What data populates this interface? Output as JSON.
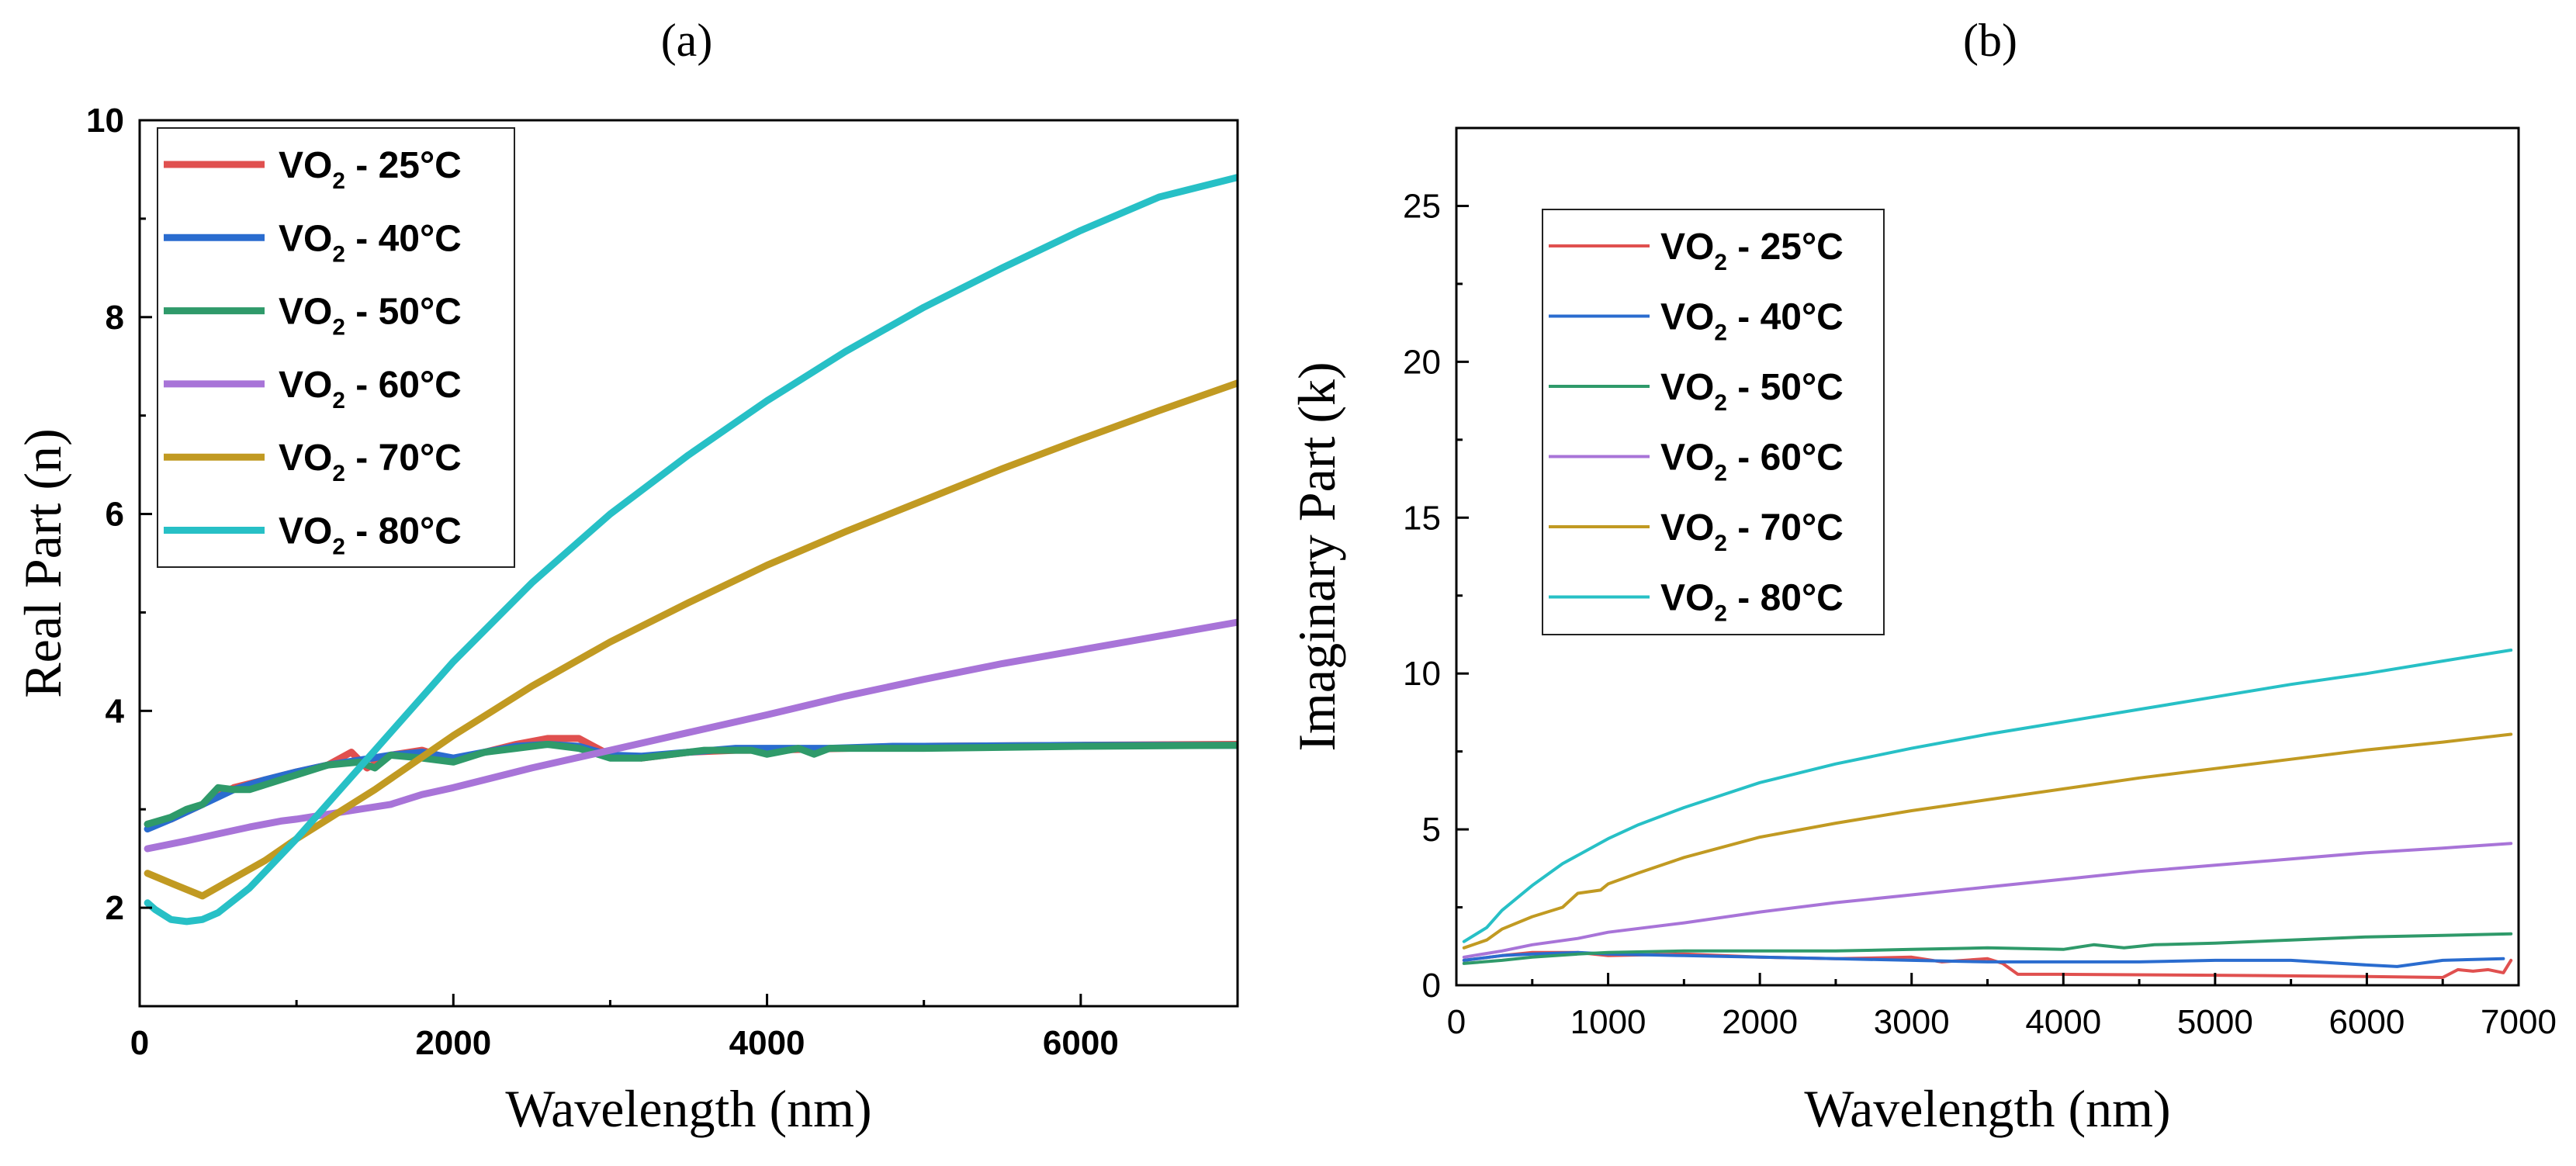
{
  "chart_data": [
    {
      "id": "a",
      "type": "line",
      "panel_label": "(a)",
      "xlabel": "Wavelength (nm)",
      "ylabel": "Real Part (n)",
      "xlim": [
        0,
        7000
      ],
      "ylim": [
        1,
        10
      ],
      "xticks": [
        0,
        2000,
        4000,
        6000
      ],
      "xtick_labels": [
        "0",
        "2000",
        "4000",
        "6000"
      ],
      "yticks": [
        2,
        4,
        6,
        8,
        10
      ],
      "ytick_labels": [
        "2",
        "4",
        "6",
        "8",
        "10"
      ],
      "legend_position": "top-left",
      "legend_style": "thick",
      "series": [
        {
          "name_main": "VO",
          "name_sub": "2",
          "name_rest": " - 25°C",
          "color": "#e0504f",
          "x": [
            50,
            200,
            400,
            600,
            800,
            1000,
            1200,
            1350,
            1450,
            1600,
            1800,
            2000,
            2200,
            2400,
            2600,
            2800,
            3000,
            3200,
            3500,
            3800,
            4000,
            4500,
            5000,
            6000,
            7000
          ],
          "y": [
            2.85,
            2.9,
            3.05,
            3.22,
            3.3,
            3.38,
            3.45,
            3.58,
            3.42,
            3.55,
            3.6,
            3.5,
            3.58,
            3.66,
            3.72,
            3.72,
            3.55,
            3.52,
            3.58,
            3.6,
            3.6,
            3.62,
            3.64,
            3.65,
            3.66
          ]
        },
        {
          "name_main": "VO",
          "name_sub": "2",
          "name_rest": " - 40°C",
          "color": "#2a6ccf",
          "x": [
            50,
            200,
            400,
            600,
            800,
            1000,
            1200,
            1400,
            1600,
            1800,
            2000,
            2200,
            2400,
            2600,
            2800,
            3000,
            3200,
            3500,
            3800,
            4000,
            4400,
            4800,
            5000,
            6000,
            7000
          ],
          "y": [
            2.8,
            2.9,
            3.05,
            3.2,
            3.3,
            3.38,
            3.45,
            3.5,
            3.55,
            3.58,
            3.52,
            3.58,
            3.64,
            3.66,
            3.64,
            3.55,
            3.54,
            3.58,
            3.62,
            3.62,
            3.62,
            3.64,
            3.64,
            3.65,
            3.65
          ]
        },
        {
          "name_main": "VO",
          "name_sub": "2",
          "name_rest": " - 50°C",
          "color": "#2f9a6a",
          "x": [
            50,
            200,
            300,
            400,
            500,
            600,
            700,
            800,
            1000,
            1200,
            1400,
            1500,
            1600,
            1800,
            2000,
            2200,
            2400,
            2600,
            2800,
            3000,
            3200,
            3600,
            3900,
            4000,
            4200,
            4300,
            4400,
            4600,
            5000,
            6000,
            7000
          ],
          "y": [
            2.85,
            2.92,
            3.0,
            3.05,
            3.22,
            3.2,
            3.2,
            3.25,
            3.35,
            3.45,
            3.48,
            3.42,
            3.55,
            3.52,
            3.48,
            3.58,
            3.62,
            3.66,
            3.62,
            3.52,
            3.52,
            3.6,
            3.6,
            3.56,
            3.62,
            3.56,
            3.62,
            3.62,
            3.62,
            3.64,
            3.65
          ]
        },
        {
          "name_main": "VO",
          "name_sub": "2",
          "name_rest": " - 60°C",
          "color": "#a874d8",
          "x": [
            50,
            300,
            500,
            700,
            900,
            1000,
            1200,
            1400,
            1600,
            1800,
            2000,
            2500,
            3000,
            3500,
            4000,
            4500,
            5000,
            5500,
            6000,
            6500,
            7000
          ],
          "y": [
            2.6,
            2.68,
            2.75,
            2.82,
            2.88,
            2.9,
            2.95,
            3.0,
            3.05,
            3.15,
            3.22,
            3.42,
            3.6,
            3.78,
            3.96,
            4.15,
            4.32,
            4.48,
            4.62,
            4.76,
            4.9
          ]
        },
        {
          "name_main": "VO",
          "name_sub": "2",
          "name_rest": " - 70°C",
          "color": "#c19a22",
          "x": [
            50,
            200,
            400,
            600,
            800,
            1000,
            1200,
            1500,
            2000,
            2500,
            3000,
            3500,
            4000,
            4500,
            5000,
            5500,
            6000,
            6500,
            7000
          ],
          "y": [
            2.35,
            2.25,
            2.12,
            2.3,
            2.48,
            2.7,
            2.9,
            3.2,
            3.75,
            4.25,
            4.7,
            5.1,
            5.48,
            5.82,
            6.14,
            6.46,
            6.76,
            7.05,
            7.33
          ]
        },
        {
          "name_main": "VO",
          "name_sub": "2",
          "name_rest": " - 80°C",
          "color": "#27c0c6",
          "x": [
            50,
            100,
            200,
            300,
            400,
            500,
            700,
            1000,
            1500,
            2000,
            2500,
            3000,
            3500,
            4000,
            4500,
            5000,
            5500,
            6000,
            6500,
            7000
          ],
          "y": [
            2.05,
            1.98,
            1.88,
            1.86,
            1.88,
            1.95,
            2.2,
            2.7,
            3.6,
            4.5,
            5.3,
            6.0,
            6.6,
            7.15,
            7.65,
            8.1,
            8.5,
            8.88,
            9.22,
            9.42
          ]
        }
      ]
    },
    {
      "id": "b",
      "type": "line",
      "panel_label": "(b)",
      "xlabel": "Wavelength (nm)",
      "ylabel": "Imaginary Part (k)",
      "xlim": [
        0,
        7000
      ],
      "ylim": [
        0,
        27.5
      ],
      "xticks": [
        0,
        1000,
        2000,
        3000,
        4000,
        5000,
        6000,
        7000
      ],
      "xtick_labels": [
        "0",
        "1000",
        "2000",
        "3000",
        "4000",
        "5000",
        "6000",
        "7000"
      ],
      "yticks": [
        0,
        5,
        10,
        15,
        20,
        25
      ],
      "ytick_labels": [
        "0",
        "5",
        "10",
        "15",
        "20",
        "25"
      ],
      "legend_position": "upper-left",
      "legend_style": "thin",
      "series": [
        {
          "name_main": "VO",
          "name_sub": "2",
          "name_rest": " - 25°C",
          "color": "#e0504f",
          "x": [
            50,
            300,
            500,
            800,
            1000,
            1500,
            2000,
            2500,
            3000,
            3200,
            3500,
            3600,
            3700,
            4000,
            5000,
            6000,
            6500,
            6600,
            6700,
            6800,
            6900,
            6950
          ],
          "y": [
            0.8,
            0.95,
            1.05,
            1.05,
            0.95,
            1.0,
            0.9,
            0.85,
            0.9,
            0.75,
            0.85,
            0.7,
            0.35,
            0.35,
            0.32,
            0.28,
            0.25,
            0.5,
            0.45,
            0.5,
            0.4,
            0.8
          ]
        },
        {
          "name_main": "VO",
          "name_sub": "2",
          "name_rest": " - 40°C",
          "color": "#2a6ccf",
          "x": [
            50,
            300,
            500,
            800,
            1000,
            1500,
            2000,
            2500,
            3000,
            3500,
            4000,
            4500,
            5000,
            5500,
            6000,
            6200,
            6500,
            6900
          ],
          "y": [
            0.8,
            0.95,
            1.0,
            1.05,
            1.0,
            0.95,
            0.9,
            0.85,
            0.8,
            0.75,
            0.75,
            0.75,
            0.8,
            0.8,
            0.65,
            0.6,
            0.8,
            0.85
          ]
        },
        {
          "name_main": "VO",
          "name_sub": "2",
          "name_rest": " - 50°C",
          "color": "#2f9a6a",
          "x": [
            50,
            300,
            500,
            800,
            1000,
            1500,
            2000,
            2500,
            3000,
            3500,
            4000,
            4200,
            4400,
            4600,
            5000,
            5500,
            6000,
            6500,
            6950
          ],
          "y": [
            0.7,
            0.8,
            0.9,
            1.0,
            1.05,
            1.1,
            1.1,
            1.1,
            1.15,
            1.2,
            1.15,
            1.3,
            1.2,
            1.3,
            1.35,
            1.45,
            1.55,
            1.6,
            1.65
          ]
        },
        {
          "name_main": "VO",
          "name_sub": "2",
          "name_rest": " - 60°C",
          "color": "#a874d8",
          "x": [
            50,
            300,
            500,
            800,
            1000,
            1500,
            2000,
            2500,
            3000,
            3500,
            4000,
            4500,
            5000,
            5500,
            6000,
            6500,
            6950
          ],
          "y": [
            0.9,
            1.1,
            1.3,
            1.5,
            1.7,
            2.0,
            2.35,
            2.65,
            2.9,
            3.15,
            3.4,
            3.65,
            3.85,
            4.05,
            4.25,
            4.4,
            4.55
          ]
        },
        {
          "name_main": "VO",
          "name_sub": "2",
          "name_rest": " - 70°C",
          "color": "#c19a22",
          "x": [
            50,
            200,
            300,
            500,
            700,
            800,
            950,
            1000,
            1200,
            1500,
            2000,
            2500,
            3000,
            3500,
            4000,
            4500,
            5000,
            5500,
            6000,
            6500,
            6950
          ],
          "y": [
            1.2,
            1.45,
            1.8,
            2.2,
            2.5,
            2.95,
            3.05,
            3.25,
            3.6,
            4.1,
            4.75,
            5.2,
            5.6,
            5.95,
            6.3,
            6.65,
            6.95,
            7.25,
            7.55,
            7.8,
            8.05
          ]
        },
        {
          "name_main": "VO",
          "name_sub": "2",
          "name_rest": " - 80°C",
          "color": "#27c0c6",
          "x": [
            50,
            200,
            300,
            500,
            700,
            1000,
            1200,
            1500,
            2000,
            2500,
            3000,
            3500,
            4000,
            4500,
            5000,
            5500,
            6000,
            6500,
            6950
          ],
          "y": [
            1.4,
            1.85,
            2.4,
            3.2,
            3.9,
            4.7,
            5.15,
            5.7,
            6.5,
            7.1,
            7.6,
            8.05,
            8.45,
            8.85,
            9.25,
            9.65,
            10.0,
            10.4,
            10.75
          ]
        }
      ]
    }
  ]
}
